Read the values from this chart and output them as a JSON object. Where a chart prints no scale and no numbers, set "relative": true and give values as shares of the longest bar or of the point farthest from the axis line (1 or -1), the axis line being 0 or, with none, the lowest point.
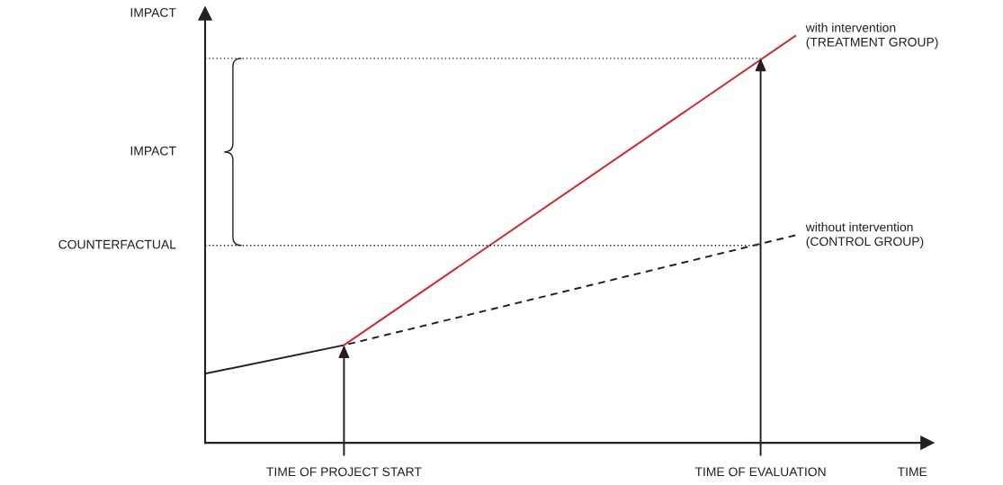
{
  "chart_data": {
    "type": "line",
    "relative": true,
    "ylabel": "IMPACT",
    "xlabel": "TIME",
    "legend": false,
    "marker": "none",
    "categories": [
      null,
      null,
      null,
      null,
      "TIME OF PROJECT START",
      null,
      null,
      null,
      null,
      null,
      null,
      null,
      null,
      null,
      null,
      null,
      "TIME OF EVALUATION",
      null,
      null,
      null,
      null
    ],
    "series": [
      {
        "color": "#231f20",
        "line_style": "solid",
        "values": [
          0.17,
          null,
          null,
          null,
          0.24,
          null,
          null,
          null,
          null,
          null,
          null,
          null,
          null,
          null,
          null,
          null,
          null,
          null,
          null,
          null,
          null
        ]
      },
      {
        "name": "with intervention\n(TREATMENT GROUP)",
        "color": "#d7262e",
        "line_style": "solid",
        "values": [
          null,
          null,
          null,
          null,
          0.24,
          null,
          null,
          null,
          null,
          null,
          null,
          null,
          null,
          null,
          null,
          null,
          null,
          1,
          null,
          null,
          null
        ]
      },
      {
        "name": "without intervention\n(CONTROL GROUP)",
        "color": "#231f20",
        "line_style": "dashed",
        "values": [
          null,
          null,
          null,
          null,
          0.24,
          null,
          null,
          null,
          null,
          null,
          null,
          null,
          null,
          null,
          null,
          null,
          null,
          0.51,
          null,
          null,
          null
        ]
      }
    ],
    "ref_lines": [
      {
        "axis": "y",
        "value": 0.945,
        "label": null,
        "line_style": "dotted",
        "color": "#231f20"
      },
      {
        "axis": "y",
        "value": 0.485,
        "label": "COUNTERFACTUAL",
        "line_style": "dotted",
        "color": "#231f20"
      }
    ],
    "annotations": [
      "IMPACT"
    ]
  }
}
